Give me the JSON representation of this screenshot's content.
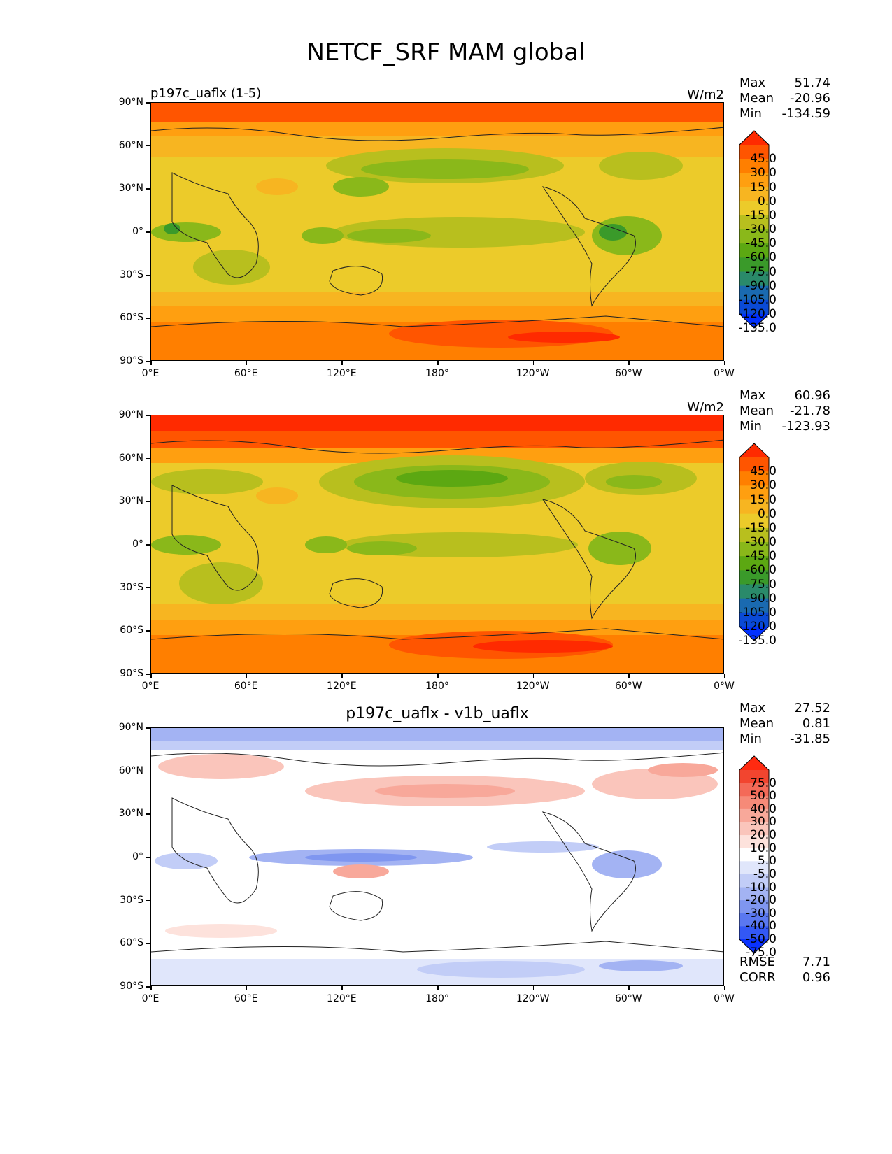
{
  "title": "NETCF_SRF MAM global",
  "panels": [
    {
      "left_title": "p197c_uaflx (1-5)",
      "center_title": "",
      "units": "W/m2",
      "stats": {
        "max_label": "Max",
        "max": "51.74",
        "mean_label": "Mean",
        "mean": "-20.96",
        "min_label": "Min",
        "min": "-134.59"
      },
      "colorbar": {
        "labels": [
          "45.0",
          "30.0",
          "15.0",
          "0.0",
          "-15.0",
          "-30.0",
          "-45.0",
          "-60.0",
          "-75.0",
          "-90.0",
          "-105.0",
          "-120.0",
          "-135.0"
        ],
        "colors": [
          "#ff2a00",
          "#ff5500",
          "#ff7f00",
          "#ff9f10",
          "#f7b521",
          "#eccb2a",
          "#b8bf1e",
          "#8ab81a",
          "#5ca812",
          "#3a9a2a",
          "#2a8a6a",
          "#1a6ab0",
          "#0a4ad6",
          "#0030ff"
        ]
      }
    },
    {
      "left_title": "",
      "center_title": "",
      "units": "W/m2",
      "stats": {
        "max_label": "Max",
        "max": "60.96",
        "mean_label": "Mean",
        "mean": "-21.78",
        "min_label": "Min",
        "min": "-123.93"
      },
      "colorbar": {
        "labels": [
          "45.0",
          "30.0",
          "15.0",
          "0.0",
          "-15.0",
          "-30.0",
          "-45.0",
          "-60.0",
          "-75.0",
          "-90.0",
          "-105.0",
          "-120.0",
          "-135.0"
        ],
        "colors": [
          "#ff2a00",
          "#ff5500",
          "#ff7f00",
          "#ff9f10",
          "#f7b521",
          "#eccb2a",
          "#b8bf1e",
          "#8ab81a",
          "#5ca812",
          "#3a9a2a",
          "#2a8a6a",
          "#1a6ab0",
          "#0a4ad6",
          "#0030ff"
        ]
      }
    },
    {
      "left_title": "",
      "center_title": "p197c_uaflx - v1b_uaflx",
      "units": "",
      "stats": {
        "max_label": "Max",
        "max": "27.52",
        "mean_label": "Mean",
        "mean": "0.81",
        "min_label": "Min",
        "min": "-31.85"
      },
      "colorbar": {
        "labels": [
          "75.0",
          "50.0",
          "40.0",
          "30.0",
          "20.0",
          "10.0",
          "5.0",
          "-5.0",
          "-10.0",
          "-20.0",
          "-30.0",
          "-40.0",
          "-50.0",
          "-75.0"
        ],
        "colors": [
          "#ff2a10",
          "#f2452f",
          "#f46a58",
          "#f68a78",
          "#f8a89a",
          "#fac5bb",
          "#fde2dc",
          "#ffffff",
          "#e0e6fb",
          "#c2cdf7",
          "#a3b3f3",
          "#7f96f0",
          "#5a78f0",
          "#3358f5",
          "#0a32ff"
        ]
      },
      "bottom_stats": {
        "rmse_label": "RMSE",
        "rmse": "7.71",
        "corr_label": "CORR",
        "corr": "0.96"
      }
    }
  ],
  "axes": {
    "y_ticks": [
      "90°N",
      "60°N",
      "30°N",
      "0°",
      "30°S",
      "60°S",
      "90°S"
    ],
    "x_ticks": [
      "0°E",
      "60°E",
      "120°E",
      "180°",
      "120°W",
      "60°W",
      "0°W"
    ]
  }
}
